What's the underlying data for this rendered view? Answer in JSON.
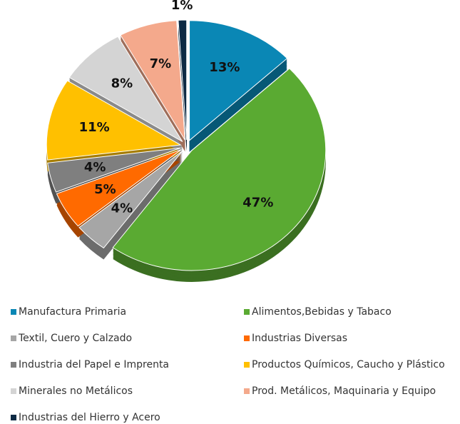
{
  "chart_data": {
    "type": "pie",
    "categories": [
      "Manufactura Primaria",
      "Alimentos,Bebidas y Tabaco",
      "Textil, Cuero y Calzado",
      "Industrias Diversas",
      "Industria del Papel e Imprenta",
      "Productos Químicos, Caucho y Plástico",
      "Minerales no Metálicos",
      "Prod. Metálicos, Maquinaria y Equipo",
      "Industrias del Hierro y Acero"
    ],
    "values": [
      13,
      47,
      4,
      5,
      4,
      11,
      8,
      7,
      1
    ],
    "value_labels": [
      "13%",
      "47%",
      "4%",
      "5%",
      "4%",
      "11%",
      "8%",
      "7%",
      "1%"
    ],
    "colors": [
      "#0a87b5",
      "#5aaa32",
      "#a6a6a6",
      "#ff6a00",
      "#7f7f7f",
      "#ffc000",
      "#d4d4d4",
      "#f4a98c",
      "#0d2a44"
    ]
  }
}
